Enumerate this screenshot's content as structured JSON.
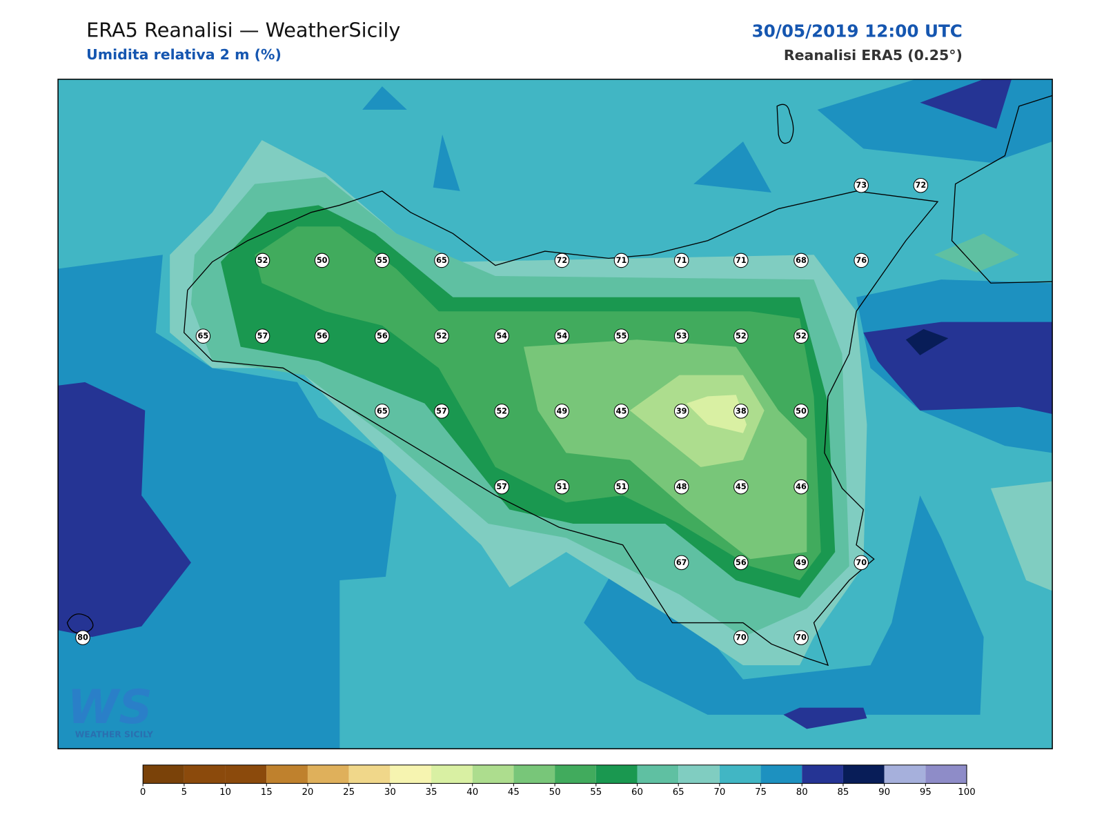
{
  "header": {
    "title": "ERA5 Reanalisi — WeatherSicily",
    "subtitle": "Umidita relativa 2 m (%)",
    "date": "30/05/2019 12:00 UTC",
    "source": "Reanalisi ERA5 (0.25°)"
  },
  "stations": [
    73,
    72,
    52,
    50,
    55,
    65,
    72,
    71,
    71,
    71,
    68,
    76,
    65,
    57,
    56,
    56,
    52,
    54,
    54,
    55,
    53,
    52,
    52,
    65,
    57,
    52,
    49,
    45,
    39,
    38,
    50,
    57,
    51,
    51,
    48,
    45,
    46,
    67,
    56,
    49,
    70,
    80,
    70,
    70
  ],
  "colorbar": {
    "ticks": [
      0,
      5,
      10,
      15,
      20,
      25,
      30,
      35,
      40,
      45,
      50,
      55,
      60,
      65,
      70,
      75,
      80,
      85,
      90,
      95,
      100
    ],
    "colors": [
      "#7a4209",
      "#8b4a0c",
      "#8b4a0c",
      "#bf812d",
      "#dfb05b",
      "#f0d78a",
      "#f6f4b0",
      "#d9f0a3",
      "#addd8e",
      "#78c679",
      "#41ab5d",
      "#1a9850",
      "#5fc0a2",
      "#80cdc1",
      "#41b6c4",
      "#1d91c0",
      "#253494",
      "#081d58",
      "#a6b0dc",
      "#8e8cc8"
    ]
  },
  "logo": {
    "initials": "WS",
    "name": "WEATHER SICILY"
  }
}
